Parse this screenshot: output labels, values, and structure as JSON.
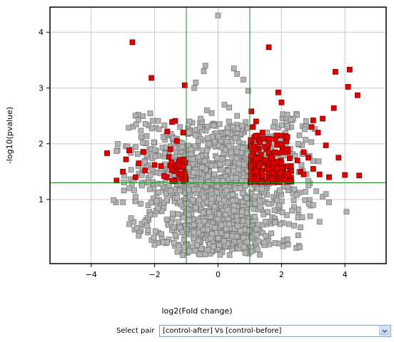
{
  "chart_data": {
    "type": "scatter",
    "title": "",
    "xlabel": "log2(Fold change)",
    "ylabel": "-log10(pvalue)",
    "xlim": [
      -5.3,
      5.3
    ],
    "ylim": [
      -0.15,
      4.45
    ],
    "xticks": [
      -4,
      -2,
      0,
      2,
      4
    ],
    "yticks": [
      1,
      2,
      3,
      4
    ],
    "grid": true,
    "thresholds": {
      "x": [
        -1,
        1
      ],
      "y": 1.3
    },
    "colors": {
      "significant": "#e00000",
      "not_significant": "#b4b4b4",
      "threshold_line": "#1a8c1a",
      "grid": "#c8c8c8"
    },
    "series": [
      {
        "values": [
          [
            -2.7,
            3.82
          ],
          [
            -2.1,
            3.18
          ],
          [
            -1.05,
            3.05
          ],
          [
            1.6,
            3.73
          ],
          [
            1.9,
            2.92
          ],
          [
            3.7,
            3.29
          ],
          [
            4.15,
            3.33
          ],
          [
            4.1,
            3.02
          ],
          [
            4.4,
            2.87
          ],
          [
            3.65,
            2.64
          ],
          [
            2.0,
            2.74
          ],
          [
            1.05,
            2.58
          ],
          [
            -1.35,
            2.41
          ],
          [
            -1.45,
            2.39
          ],
          [
            -1.6,
            2.22
          ],
          [
            -1.1,
            2.2
          ],
          [
            -1.3,
            2.05
          ],
          [
            -3.5,
            1.83
          ],
          [
            -2.8,
            1.88
          ],
          [
            -2.35,
            1.85
          ],
          [
            -2.9,
            1.72
          ],
          [
            -2.5,
            1.65
          ],
          [
            -2.0,
            1.62
          ],
          [
            -1.8,
            1.6
          ],
          [
            -3.0,
            1.5
          ],
          [
            -3.2,
            1.34
          ],
          [
            -2.6,
            1.4
          ],
          [
            -2.3,
            1.52
          ],
          [
            -1.5,
            1.9
          ],
          [
            -1.25,
            1.62
          ],
          [
            -1.15,
            1.45
          ],
          [
            -1.05,
            1.35
          ],
          [
            -1.7,
            1.42
          ],
          [
            3.0,
            2.42
          ],
          [
            3.3,
            2.45
          ],
          [
            3.15,
            2.2
          ],
          [
            2.95,
            2.3
          ],
          [
            3.4,
            1.97
          ],
          [
            2.7,
            1.85
          ],
          [
            2.85,
            1.75
          ],
          [
            3.0,
            1.55
          ],
          [
            2.2,
            1.9
          ],
          [
            2.5,
            1.7
          ],
          [
            2.0,
            1.65
          ],
          [
            1.8,
            1.85
          ],
          [
            1.6,
            2.0
          ],
          [
            1.4,
            2.2
          ],
          [
            1.2,
            2.4
          ],
          [
            1.1,
            2.3
          ],
          [
            1.5,
            1.7
          ],
          [
            1.3,
            1.6
          ],
          [
            1.2,
            1.5
          ],
          [
            1.4,
            1.42
          ],
          [
            1.7,
            1.38
          ],
          [
            2.3,
            1.6
          ],
          [
            2.6,
            1.5
          ],
          [
            3.2,
            1.45
          ],
          [
            3.5,
            1.4
          ],
          [
            4.0,
            1.44
          ],
          [
            4.45,
            1.43
          ],
          [
            3.8,
            1.75
          ],
          [
            2.1,
            1.35
          ],
          [
            1.05,
            1.78
          ],
          [
            1.15,
            1.95
          ],
          [
            1.35,
            1.8
          ],
          [
            1.55,
            1.55
          ],
          [
            1.75,
            1.65
          ],
          [
            1.95,
            1.48
          ],
          [
            2.25,
            1.33
          ],
          [
            2.7,
            1.45
          ]
        ]
      },
      {
        "values": [
          [
            0.0,
            4.3
          ],
          [
            -0.4,
            3.4
          ],
          [
            -0.45,
            3.3
          ],
          [
            0.5,
            3.35
          ],
          [
            0.6,
            3.25
          ],
          [
            0.8,
            3.15
          ],
          [
            0.95,
            2.95
          ],
          [
            -0.7,
            3.1
          ],
          [
            -0.75,
            3.0
          ],
          [
            0.2,
            2.7
          ],
          [
            0.35,
            2.65
          ],
          [
            -0.2,
            2.55
          ],
          [
            -0.35,
            2.6
          ],
          [
            0.6,
            2.5
          ],
          [
            -0.55,
            2.45
          ],
          [
            -1.4,
            2.1
          ],
          [
            -1.2,
            2.3
          ],
          [
            -0.9,
            2.4
          ],
          [
            0.05,
            2.35
          ],
          [
            -0.85,
            1.9
          ],
          [
            0.3,
            2.2
          ],
          [
            0.55,
            2.1
          ],
          [
            -2.2,
            1.3
          ],
          [
            -2.6,
            1.05
          ],
          [
            -3.0,
            0.95
          ],
          [
            -2.8,
            1.2
          ],
          [
            -2.4,
            1.25
          ],
          [
            3.3,
            1.05
          ],
          [
            3.5,
            0.95
          ],
          [
            3.1,
            1.15
          ],
          [
            2.85,
            1.25
          ],
          [
            4.05,
            0.78
          ],
          [
            3.4,
            1.1
          ],
          [
            3.2,
            0.6
          ],
          [
            2.6,
            0.5
          ],
          [
            -2.5,
            0.35
          ],
          [
            2.9,
            0.7
          ],
          [
            3.0,
            0.9
          ],
          [
            -1.4,
            0.5
          ],
          [
            1.5,
            0.35
          ]
        ]
      }
    ]
  },
  "controls": {
    "select_pair_label": "Select pair",
    "select_pair_value": "[control-after] Vs [control-before]"
  }
}
